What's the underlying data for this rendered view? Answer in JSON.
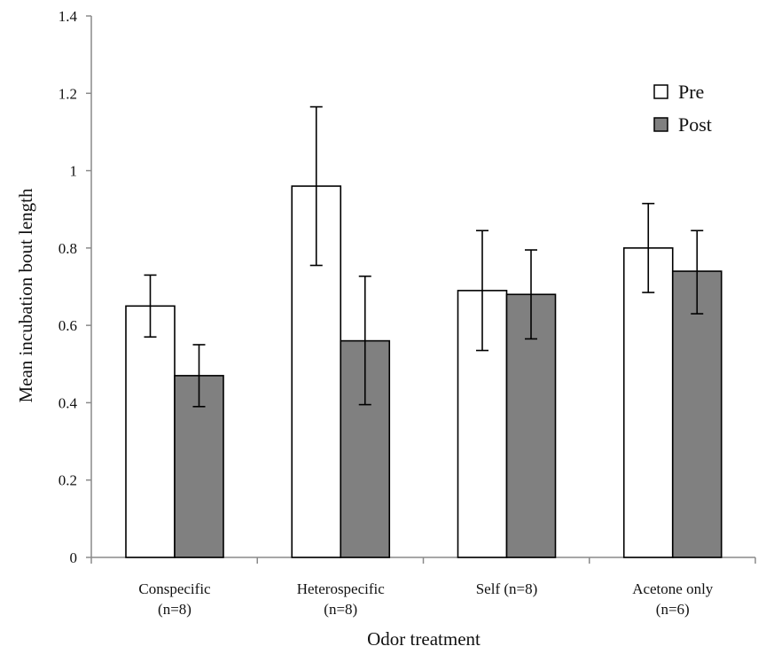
{
  "chart_data": {
    "type": "bar",
    "title": "",
    "xlabel": "Odor treatment",
    "ylabel": "Mean incubation bout length",
    "ylim": [
      0,
      1.4
    ],
    "yticks": [
      "0",
      "0.2",
      "0.4",
      "0.6",
      "0.8",
      "1",
      "1.2",
      "1.4"
    ],
    "categories": [
      [
        "Conspecific",
        "(n=8)"
      ],
      [
        "Heterospecific",
        "(n=8)"
      ],
      [
        "Self (n=8)"
      ],
      [
        "Acetone only",
        "(n=6)"
      ]
    ],
    "series": [
      {
        "name": "Pre",
        "color": "#ffffff",
        "values": [
          0.65,
          0.96,
          0.69,
          0.8
        ],
        "error_low": [
          0.57,
          0.755,
          0.535,
          0.685
        ],
        "error_high": [
          0.73,
          1.165,
          0.845,
          0.915
        ]
      },
      {
        "name": "Post",
        "color": "#808080",
        "values": [
          0.47,
          0.56,
          0.68,
          0.74
        ],
        "error_low": [
          0.39,
          0.395,
          0.565,
          0.63
        ],
        "error_high": [
          0.55,
          0.727,
          0.795,
          0.845
        ]
      }
    ],
    "legend": "top-right",
    "grid": false
  }
}
